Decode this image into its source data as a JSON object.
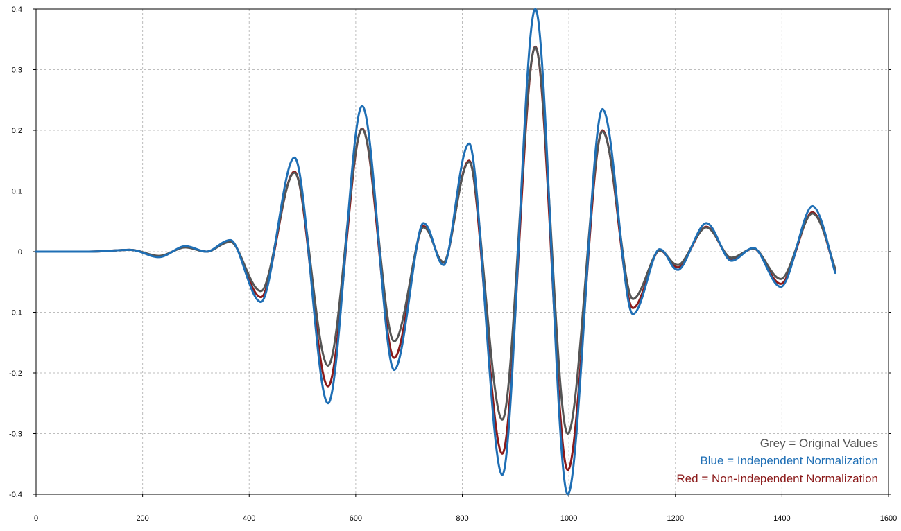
{
  "chart_data": {
    "type": "line",
    "title": "",
    "xlabel": "",
    "ylabel": "",
    "xlim": [
      0,
      1600
    ],
    "ylim": [
      -0.4,
      0.4
    ],
    "x_ticks": [
      0,
      200,
      400,
      600,
      800,
      1000,
      1200,
      1400,
      1600
    ],
    "y_ticks": [
      0.4,
      0.3,
      0.2,
      0.1,
      0,
      -0.1,
      -0.2,
      -0.3,
      -0.4
    ],
    "x_tick_labels": [
      "0",
      "200",
      "400",
      "600",
      "800",
      "1000",
      "1200",
      "1400",
      "1600"
    ],
    "y_tick_labels": [
      "0.4",
      "0.3",
      "0.2",
      "0.1",
      "0",
      "-0.1",
      "-0.2",
      "-0.3",
      "-0.4"
    ],
    "grid": true,
    "legend_position": "bottom-right",
    "legend": [
      {
        "text": "Grey = Original Values",
        "color": "#555555"
      },
      {
        "text": "Blue = Independent Normalization",
        "color": "#1f6fb5"
      },
      {
        "text": "Red = Non-Independent Normalization",
        "color": "#8b1a1a"
      }
    ],
    "series": [
      {
        "color": "#8b1a1a",
        "points": [
          [
            0,
            0
          ],
          [
            100,
            0
          ],
          [
            175,
            0.003
          ],
          [
            230,
            -0.008
          ],
          [
            280,
            0.008
          ],
          [
            320,
            0
          ],
          [
            365,
            0.018
          ],
          [
            422,
            -0.075
          ],
          [
            485,
            0.132
          ],
          [
            548,
            -0.222
          ],
          [
            612,
            0.203
          ],
          [
            672,
            -0.175
          ],
          [
            727,
            0.042
          ],
          [
            765,
            -0.018
          ],
          [
            813,
            0.15
          ],
          [
            875,
            -0.333
          ],
          [
            937,
            0.338
          ],
          [
            998,
            -0.36
          ],
          [
            1063,
            0.2
          ],
          [
            1120,
            -0.093
          ],
          [
            1170,
            0.002
          ],
          [
            1205,
            -0.026
          ],
          [
            1258,
            0.041
          ],
          [
            1305,
            -0.012
          ],
          [
            1347,
            0.005
          ],
          [
            1398,
            -0.053
          ],
          [
            1457,
            0.065
          ],
          [
            1500,
            -0.032
          ]
        ]
      },
      {
        "color": "#555555",
        "points": [
          [
            0,
            0
          ],
          [
            100,
            0
          ],
          [
            175,
            0.003
          ],
          [
            230,
            -0.007
          ],
          [
            280,
            0.007
          ],
          [
            320,
            0
          ],
          [
            365,
            0.016
          ],
          [
            422,
            -0.065
          ],
          [
            485,
            0.13
          ],
          [
            548,
            -0.188
          ],
          [
            612,
            0.202
          ],
          [
            672,
            -0.148
          ],
          [
            727,
            0.04
          ],
          [
            765,
            -0.017
          ],
          [
            813,
            0.148
          ],
          [
            875,
            -0.277
          ],
          [
            937,
            0.337
          ],
          [
            998,
            -0.3
          ],
          [
            1063,
            0.198
          ],
          [
            1120,
            -0.078
          ],
          [
            1170,
            0.002
          ],
          [
            1205,
            -0.022
          ],
          [
            1258,
            0.04
          ],
          [
            1305,
            -0.01
          ],
          [
            1347,
            0.005
          ],
          [
            1398,
            -0.045
          ],
          [
            1457,
            0.063
          ],
          [
            1500,
            -0.028
          ]
        ]
      },
      {
        "color": "#1f6fb5",
        "points": [
          [
            0,
            0
          ],
          [
            100,
            0
          ],
          [
            175,
            0.003
          ],
          [
            230,
            -0.009
          ],
          [
            280,
            0.009
          ],
          [
            320,
            0
          ],
          [
            365,
            0.019
          ],
          [
            422,
            -0.083
          ],
          [
            485,
            0.155
          ],
          [
            548,
            -0.25
          ],
          [
            612,
            0.24
          ],
          [
            672,
            -0.195
          ],
          [
            727,
            0.047
          ],
          [
            765,
            -0.022
          ],
          [
            813,
            0.178
          ],
          [
            875,
            -0.368
          ],
          [
            937,
            0.4
          ],
          [
            998,
            -0.4
          ],
          [
            1063,
            0.235
          ],
          [
            1120,
            -0.103
          ],
          [
            1170,
            0.004
          ],
          [
            1205,
            -0.03
          ],
          [
            1258,
            0.047
          ],
          [
            1305,
            -0.015
          ],
          [
            1347,
            0.006
          ],
          [
            1398,
            -0.058
          ],
          [
            1457,
            0.075
          ],
          [
            1500,
            -0.035
          ]
        ]
      }
    ]
  }
}
